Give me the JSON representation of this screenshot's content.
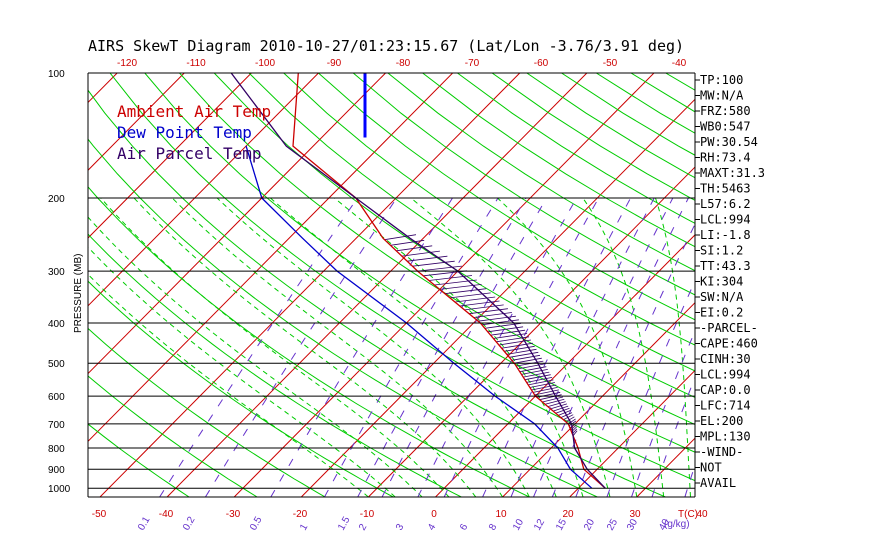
{
  "chart_data": {
    "type": "line",
    "title": "AIRS SkewT Diagram 2010-10-27/01:23:15.67 (Lat/Lon -3.76/3.91 deg)",
    "ylabel": "PRESSURE (MB)",
    "y_scale": "log",
    "ylim": [
      1000,
      100
    ],
    "xlim": [
      -50,
      45
    ],
    "pressure_ticks": [
      100,
      200,
      300,
      400,
      500,
      600,
      700,
      800,
      900,
      1000
    ],
    "top_temp_ticks": [
      -120,
      -110,
      -100,
      -90,
      -80,
      -70,
      -60,
      -50,
      -40
    ],
    "bottom_temp_ticks": [
      -50,
      -40,
      -30,
      -20,
      -10,
      0,
      10,
      20,
      30,
      40
    ],
    "bottom_unit_label": "T(C)",
    "mixing_ratio_labels": [
      "0.1",
      "0.2",
      "0.5",
      "1",
      "1.5",
      "2",
      "3",
      "4",
      "6",
      "8",
      "10",
      "12",
      "15",
      "20",
      "25",
      "30",
      "40"
    ],
    "mixing_ratio_unit": "(g/kg)",
    "legend": [
      {
        "label": "Ambient Air Temp",
        "color": "#cc0000"
      },
      {
        "label": "Dew Point Temp",
        "color": "#0000cc"
      },
      {
        "label": "Air Parcel Temp",
        "color": "#330066"
      }
    ],
    "series": [
      {
        "name": "Ambient Air Temp",
        "color": "#cc0000",
        "points": [
          [
            1000,
            24
          ],
          [
            900,
            18
          ],
          [
            800,
            14
          ],
          [
            700,
            9
          ],
          [
            600,
            0
          ],
          [
            500,
            -8
          ],
          [
            400,
            -19
          ],
          [
            300,
            -36
          ],
          [
            250,
            -46
          ],
          [
            200,
            -56
          ],
          [
            150,
            -73
          ],
          [
            100,
            -83
          ]
        ]
      },
      {
        "name": "Dew Point Temp",
        "color": "#0000cc",
        "points": [
          [
            1000,
            22
          ],
          [
            900,
            16
          ],
          [
            800,
            11
          ],
          [
            700,
            4
          ],
          [
            600,
            -6
          ],
          [
            500,
            -17
          ],
          [
            400,
            -30
          ],
          [
            300,
            -48
          ],
          [
            250,
            -58
          ],
          [
            200,
            -70
          ],
          [
            150,
            -80
          ]
        ]
      },
      {
        "name": "Air Parcel Temp",
        "color": "#330066",
        "points": [
          [
            1000,
            24
          ],
          [
            900,
            18.5
          ],
          [
            800,
            13.5
          ],
          [
            700,
            9.5
          ],
          [
            600,
            3
          ],
          [
            500,
            -4.5
          ],
          [
            400,
            -14
          ],
          [
            300,
            -30
          ],
          [
            250,
            -42
          ],
          [
            200,
            -56
          ],
          [
            150,
            -74
          ],
          [
            100,
            -93
          ]
        ]
      }
    ],
    "wind_marker": {
      "color": "#0000ff",
      "temp": -85,
      "p_top": 100,
      "p_bottom": 143
    }
  },
  "indices": [
    "TP:100",
    "MW:N/A",
    "FRZ:580",
    "WB0:547",
    "PW:30.54",
    "RH:73.4",
    "MAXT:31.3",
    "TH:5463",
    "L57:6.2",
    "LCL:994",
    "LI:-1.8",
    "SI:1.2",
    "TT:43.3",
    "KI:304",
    "SW:N/A",
    "EI:0.2",
    "-PARCEL-",
    "CAPE:460",
    "CINH:30",
    "LCL:994",
    "CAP:0.0",
    "LFC:714",
    "EL:200",
    "MPL:130",
    "-WIND-",
    " NOT",
    "AVAIL"
  ],
  "colors": {
    "isotherm": "#cc0000",
    "dry_adiabat": "#00cc00",
    "moist_adiabat": "#00cc00",
    "mixing_ratio": "#6633cc",
    "axis": "#000000"
  }
}
